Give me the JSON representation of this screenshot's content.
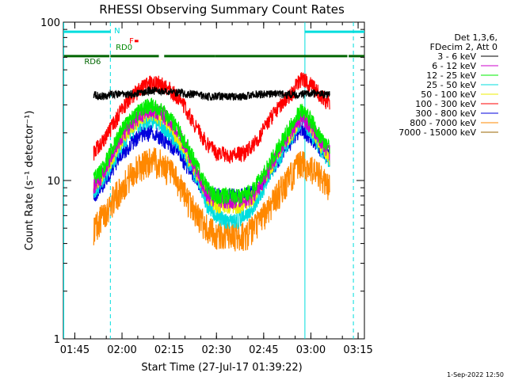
{
  "chart_data": {
    "type": "line",
    "title": "RHESSI Observing Summary Count Rates",
    "xlabel": "Start Time (27-Jul-17 01:39:22)",
    "ylabel": "Count Rate (s⁻¹ detector⁻¹)",
    "yscale": "log",
    "ylim": [
      1,
      100
    ],
    "xlim_minutes": [
      101.37,
      197.0
    ],
    "x_ticks": [
      {
        "minute": 105,
        "label": "01:45"
      },
      {
        "minute": 120,
        "label": "02:00"
      },
      {
        "minute": 135,
        "label": "02:15"
      },
      {
        "minute": 150,
        "label": "02:30"
      },
      {
        "minute": 165,
        "label": "02:45"
      },
      {
        "minute": 180,
        "label": "03:00"
      },
      {
        "minute": 195,
        "label": "03:15"
      }
    ],
    "y_ticks": [
      {
        "value": 1,
        "label": "1"
      },
      {
        "value": 10,
        "label": "10"
      },
      {
        "value": 100,
        "label": "100"
      }
    ],
    "grid": false,
    "legend_position": "right",
    "legend_header": [
      "Det 1,3,6,",
      "FDecim 2, Att 0"
    ],
    "x_minutes": [
      111,
      114,
      117,
      120,
      123,
      126,
      129,
      132,
      135,
      138,
      141,
      144,
      147,
      150,
      153,
      156,
      159,
      162,
      165,
      168,
      171,
      174,
      177,
      180,
      183,
      186
    ],
    "series": [
      {
        "name": "3 - 6 keV",
        "color": "#000000",
        "values": [
          35,
          34,
          35,
          35,
          35,
          36,
          37,
          37,
          36,
          36,
          35,
          35,
          34,
          34,
          34,
          34,
          34,
          35,
          35,
          35,
          35,
          35,
          35,
          36,
          35,
          35
        ]
      },
      {
        "name": "6 - 12 keV",
        "color": "#cc00cc",
        "values": [
          9,
          11,
          15,
          19,
          23,
          26,
          28,
          27,
          24,
          20,
          15,
          11,
          8,
          7.5,
          7.5,
          7.5,
          7.5,
          8,
          10,
          13,
          17,
          21,
          25,
          22,
          18,
          15
        ]
      },
      {
        "name": "12 - 25 keV",
        "color": "#00ee00",
        "values": [
          10,
          12,
          16,
          21,
          25,
          28,
          30,
          28,
          25,
          21,
          16,
          12,
          9,
          8,
          8,
          8,
          8,
          9,
          11,
          14,
          18,
          23,
          28,
          24,
          19,
          16
        ]
      },
      {
        "name": "25 - 50 keV",
        "color": "#00dddd",
        "values": [
          8.5,
          10,
          13,
          17,
          20,
          23,
          24,
          23,
          20,
          17,
          13,
          10,
          7,
          6,
          5.5,
          5.5,
          6,
          7,
          9,
          12,
          15,
          19,
          24,
          20,
          16,
          13
        ]
      },
      {
        "name": "50 - 100 keV",
        "color": "#eeee00",
        "values": [
          9,
          11,
          14,
          18,
          22,
          25,
          27,
          25,
          22,
          18,
          14,
          11,
          8,
          7,
          7,
          7,
          7,
          8,
          10,
          13,
          16,
          20,
          26,
          22,
          17,
          14
        ]
      },
      {
        "name": "100 - 300 keV",
        "color": "#ff0000",
        "values": [
          15,
          18,
          22,
          28,
          34,
          38,
          41,
          41,
          38,
          33,
          27,
          21,
          17,
          15,
          14.5,
          14.5,
          15,
          17,
          21,
          26,
          31,
          36,
          44,
          40,
          35,
          30
        ]
      },
      {
        "name": "300 - 800 keV",
        "color": "#0000dd",
        "values": [
          8,
          9.5,
          12,
          15,
          17,
          19.5,
          20,
          19,
          17,
          15,
          12,
          9.5,
          8.5,
          8,
          8,
          8,
          8,
          8.5,
          10,
          12,
          15,
          18,
          21,
          19,
          16,
          14
        ]
      },
      {
        "name": "800 - 7000 keV",
        "color": "#ff8800",
        "values": [
          5,
          6,
          7.5,
          9,
          11,
          12.5,
          13.5,
          13,
          11.5,
          9.5,
          7.5,
          6,
          5,
          4.5,
          4.5,
          4.5,
          4.5,
          5,
          6,
          7.5,
          9,
          11,
          13,
          12,
          10.5,
          9
        ]
      },
      {
        "name": "7000 - 15000 keV",
        "color": "#996600",
        "values": []
      }
    ],
    "vertical_lines": [
      {
        "minute": 101.5,
        "style": "solid",
        "color": "#00dddd"
      },
      {
        "minute": 116.3,
        "style": "dashed",
        "color": "#00dddd"
      },
      {
        "minute": 178.1,
        "style": "solid",
        "color": "#00dddd"
      },
      {
        "minute": 193.5,
        "style": "dashed",
        "color": "#00dddd"
      }
    ],
    "flag_bars": [
      {
        "label": "N",
        "color": "#00dddd",
        "y_value": 87.0,
        "segments": [
          [
            101.5,
            116.2
          ],
          [
            178.1,
            197.0
          ]
        ]
      },
      {
        "label": "F",
        "color": "#ff0000",
        "y_value": 76.0,
        "segments": [
          [
            124.0,
            125.2
          ]
        ]
      },
      {
        "label": "RD0",
        "color": "#008800",
        "y_value": 69.0,
        "segments": []
      },
      {
        "label": "RD6",
        "color": "#006600",
        "y_value": 61.0,
        "segments": [
          [
            101.5,
            116.0
          ],
          [
            116.3,
            131.7
          ],
          [
            133.4,
            149.5
          ],
          [
            149.5,
            191.6
          ],
          [
            192.0,
            197.0
          ]
        ]
      }
    ],
    "annotations": [
      {
        "text": "N",
        "color": "#00dddd"
      },
      {
        "text": "F",
        "color": "#ff0000"
      },
      {
        "text": "RD0",
        "color": "#008800"
      },
      {
        "text": "RD6",
        "color": "#006600"
      }
    ]
  },
  "footer": {
    "date_stamp": "1-Sep-2022 12:50"
  }
}
